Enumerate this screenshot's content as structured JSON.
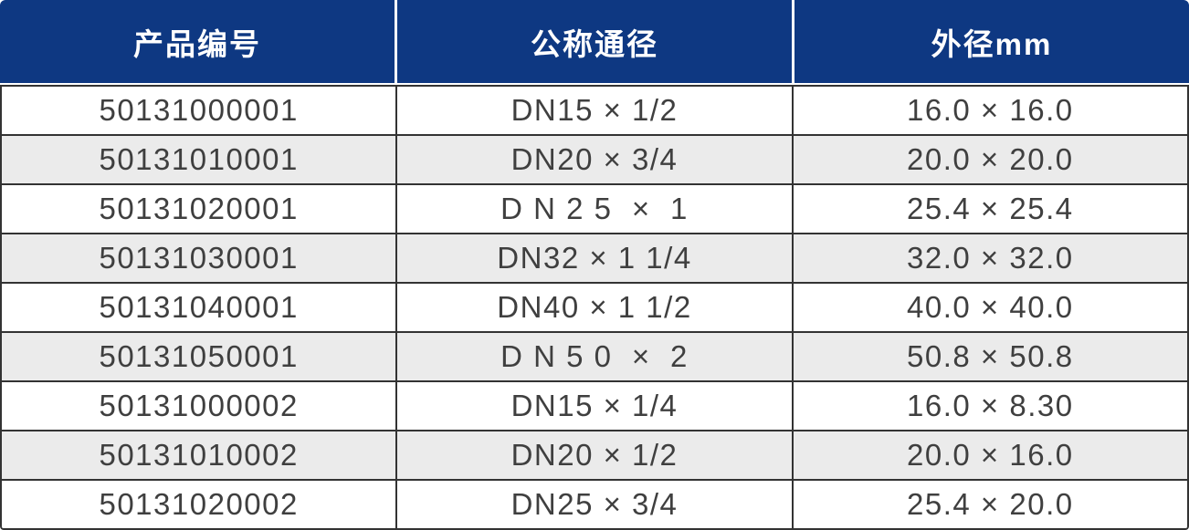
{
  "table": {
    "columns": [
      {
        "label": "产品编号"
      },
      {
        "label": "公称通径"
      },
      {
        "label": "外径mm"
      }
    ],
    "rows": [
      {
        "product_code": "50131000001",
        "nominal_diameter": "DN15 × 1/2",
        "outer_diameter": "16.0 × 16.0"
      },
      {
        "product_code": "50131010001",
        "nominal_diameter": "DN20 × 3/4",
        "outer_diameter": "20.0 × 20.0"
      },
      {
        "product_code": "50131020001",
        "nominal_diameter": "D N 2 5  ×  1",
        "outer_diameter": "25.4 × 25.4"
      },
      {
        "product_code": "50131030001",
        "nominal_diameter": "DN32 × 1 1/4",
        "outer_diameter": "32.0 × 32.0"
      },
      {
        "product_code": "50131040001",
        "nominal_diameter": "DN40 × 1 1/2",
        "outer_diameter": "40.0 × 40.0"
      },
      {
        "product_code": "50131050001",
        "nominal_diameter": "D N 5 0  ×  2",
        "outer_diameter": "50.8 × 50.8"
      },
      {
        "product_code": "50131000002",
        "nominal_diameter": "DN15 × 1/4",
        "outer_diameter": "16.0 × 8.30"
      },
      {
        "product_code": "50131010002",
        "nominal_diameter": "DN20 × 1/2",
        "outer_diameter": "20.0 × 16.0"
      },
      {
        "product_code": "50131020002",
        "nominal_diameter": "DN25 × 3/4",
        "outer_diameter": "25.4 × 20.0"
      }
    ]
  },
  "colors": {
    "header_bg": "#0e3882",
    "header_text": "#ffffff",
    "row_bg": "#ffffff",
    "row_alt_bg": "#ebebeb",
    "border": "#333333",
    "cell_text": "#3f3f3f"
  }
}
